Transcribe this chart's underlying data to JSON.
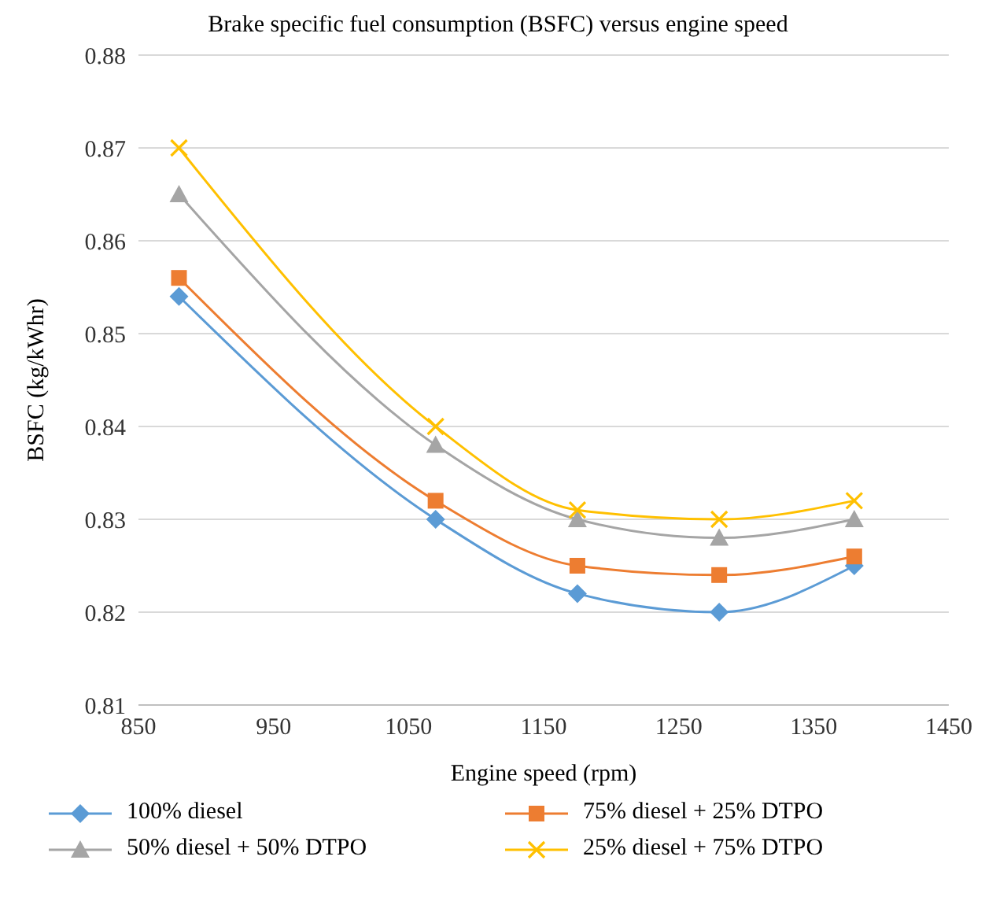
{
  "chart_data": {
    "type": "line",
    "title": "Brake specific fuel consumption (BSFC) versus engine speed",
    "xlabel": "Engine speed (rpm)",
    "ylabel": "BSFC (kg/kWhr)",
    "x": [
      880,
      1070,
      1175,
      1280,
      1380
    ],
    "series": [
      {
        "name": "100% diesel",
        "color": "#5b9bd5",
        "marker": "diamond",
        "values": [
          0.854,
          0.83,
          0.822,
          0.82,
          0.825
        ]
      },
      {
        "name": "75% diesel + 25% DTPO",
        "color": "#ed7d31",
        "marker": "square",
        "values": [
          0.856,
          0.832,
          0.825,
          0.824,
          0.826
        ]
      },
      {
        "name": "50% diesel + 50% DTPO",
        "color": "#a5a5a5",
        "marker": "triangle",
        "values": [
          0.865,
          0.838,
          0.83,
          0.828,
          0.83
        ]
      },
      {
        "name": "25% diesel + 75% DTPO",
        "color": "#ffc000",
        "marker": "cross",
        "values": [
          0.87,
          0.84,
          0.831,
          0.83,
          0.832
        ]
      }
    ],
    "xlim": [
      850,
      1450
    ],
    "xticks": [
      850,
      950,
      1050,
      1150,
      1250,
      1350,
      1450
    ],
    "ylim": [
      0.81,
      0.88
    ],
    "yticks": [
      0.81,
      0.82,
      0.83,
      0.84,
      0.85,
      0.86,
      0.87,
      0.88
    ],
    "grid": "y",
    "legend": "bottom"
  }
}
